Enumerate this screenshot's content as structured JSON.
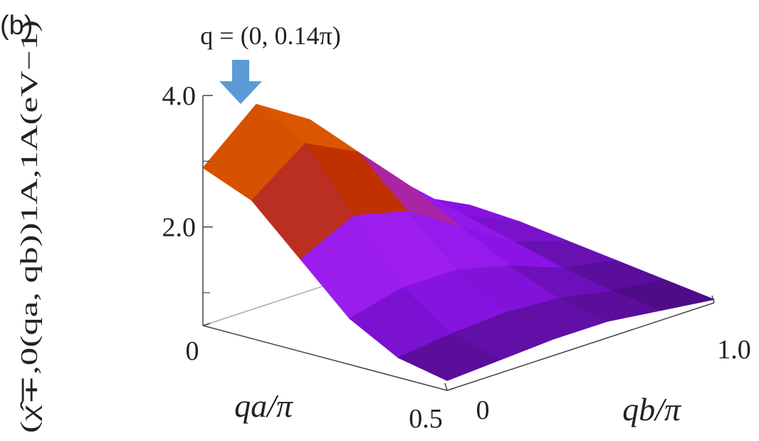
{
  "chart_data": {
    "type": "surface",
    "panel_label": "(b)",
    "annotation": "q = (0, 0.14π)",
    "annotation_color": "#5b9bd5",
    "xlabel": "qa/π",
    "ylabel": "qb/π",
    "zlabel": "(χ̂∓,0(qa, qb))1A,1A(eV−1)",
    "x": [
      0,
      0.1,
      0.2,
      0.3,
      0.4,
      0.5
    ],
    "y": [
      0,
      0.2,
      0.4,
      0.6,
      0.8,
      1.0
    ],
    "z": [
      [
        2.9,
        3.6,
        3.1,
        2.2,
        1.4,
        1.0
      ],
      [
        2.6,
        3.2,
        2.8,
        2.0,
        1.3,
        0.95
      ],
      [
        1.9,
        2.3,
        2.1,
        1.6,
        1.1,
        0.85
      ],
      [
        1.2,
        1.4,
        1.4,
        1.2,
        0.9,
        0.75
      ],
      [
        0.8,
        0.9,
        0.95,
        0.9,
        0.75,
        0.65
      ],
      [
        0.65,
        0.7,
        0.75,
        0.75,
        0.65,
        0.55
      ]
    ],
    "xlim": [
      0,
      0.5
    ],
    "ylim": [
      0,
      1.0
    ],
    "zlim": [
      0.5,
      4.0
    ],
    "xticks": [
      0,
      0.5
    ],
    "yticks": [
      0,
      {
        "value": 1.0,
        "label": "1.0"
      }
    ],
    "zticks": [
      {
        "value": 2,
        "label": "2.0"
      },
      {
        "value": 4,
        "label": "4.0"
      }
    ],
    "zminor": [
      1,
      3
    ],
    "colormap": [
      "#3d0a6e",
      "#8a14e6",
      "#a020f0",
      "#c03000",
      "#e06000",
      "#f5b000"
    ]
  }
}
